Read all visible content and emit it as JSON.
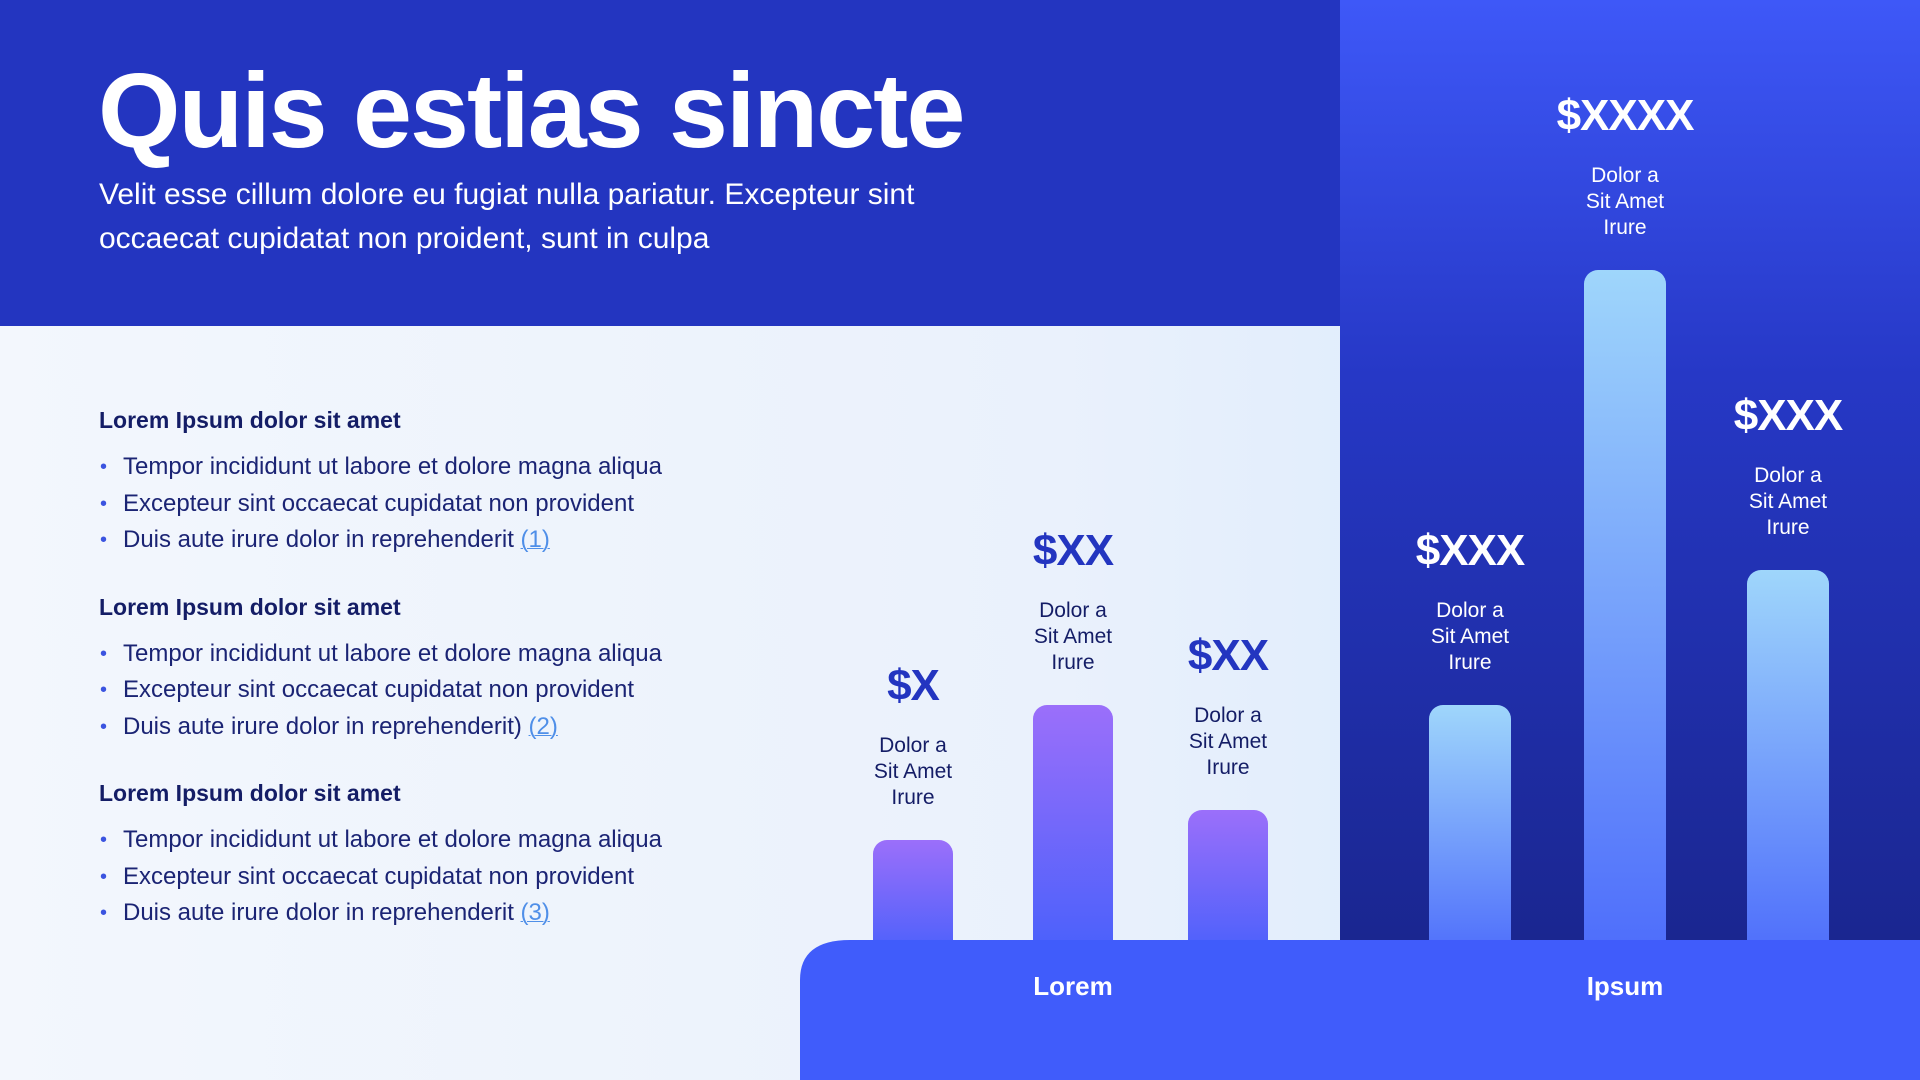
{
  "header": {
    "title": "Quis estias sincte",
    "subtitle": "Velit esse cillum dolore eu fugiat nulla pariatur. Excepteur sint occaecat cupidatat non proident, sunt in culpa"
  },
  "sections": [
    {
      "heading": "Lorem Ipsum dolor sit amet",
      "items": [
        {
          "text": "Tempor incididunt ut labore et dolore magna aliqua",
          "ref": ""
        },
        {
          "text": "Excepteur sint occaecat cupidatat non provident",
          "ref": ""
        },
        {
          "text": "Duis aute irure dolor in reprehenderit ",
          "ref": "(1)"
        }
      ]
    },
    {
      "heading": "Lorem Ipsum dolor sit amet",
      "items": [
        {
          "text": "Tempor incididunt ut labore et dolore magna aliqua",
          "ref": ""
        },
        {
          "text": "Excepteur sint occaecat cupidatat non provident",
          "ref": ""
        },
        {
          "text": "Duis aute irure dolor in reprehenderit) ",
          "ref": "(2)"
        }
      ]
    },
    {
      "heading": "Lorem Ipsum dolor sit amet",
      "items": [
        {
          "text": "Tempor incididunt ut labore et dolore magna aliqua",
          "ref": ""
        },
        {
          "text": "Excepteur sint occaecat cupidatat non provident",
          "ref": ""
        },
        {
          "text": "Duis aute irure dolor in reprehenderit ",
          "ref": "(3)"
        }
      ]
    }
  ],
  "colors": {
    "header_bg": "#2335c0",
    "base_bar": "#405cfb",
    "group1_bar_top": "#9b6ffa",
    "group1_bar_bottom": "#4760fb",
    "group2_bar_top": "#9fd6fb",
    "group2_bar_bottom": "#4d6cfb"
  },
  "chart_data": {
    "type": "bar",
    "groups": [
      {
        "name": "Lorem",
        "bars": [
          {
            "value_label": "$X",
            "label_lines": [
              "Dolor a",
              "Sit Amet",
              "Irure"
            ],
            "value": 1
          },
          {
            "value_label": "$XX",
            "label_lines": [
              "Dolor a",
              "Sit Amet",
              "Irure"
            ],
            "value": 2.35
          },
          {
            "value_label": "$XX",
            "label_lines": [
              "Dolor a",
              "Sit Amet",
              "Irure"
            ],
            "value": 1.3
          }
        ]
      },
      {
        "name": "Ipsum",
        "bars": [
          {
            "value_label": "$XXX",
            "label_lines": [
              "Dolor a",
              "Sit Amet",
              "Irure"
            ],
            "value": 2.35
          },
          {
            "value_label": "$XXXX",
            "label_lines": [
              "Dolor a",
              "Sit Amet",
              "Irure"
            ],
            "value": 6.7
          },
          {
            "value_label": "$XXX",
            "label_lines": [
              "Dolor a",
              "Sit Amet",
              "Irure"
            ],
            "value": 3.7
          }
        ]
      }
    ],
    "title": "",
    "xlabel": "",
    "ylabel": ""
  }
}
